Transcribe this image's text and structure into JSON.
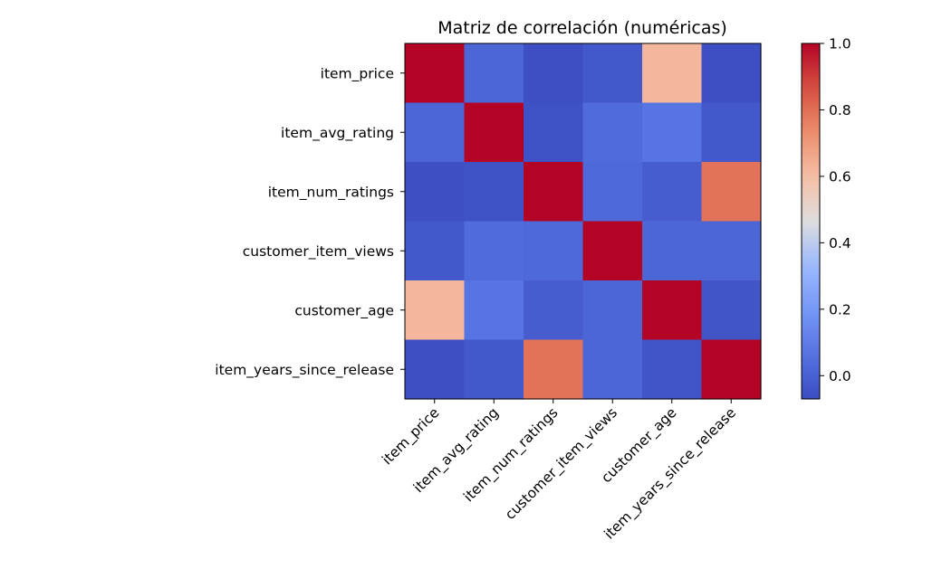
{
  "chart_data": {
    "type": "heatmap",
    "title": "Matriz de correlación (numéricas)",
    "rows": [
      "item_price",
      "item_avg_rating",
      "item_num_ratings",
      "customer_item_views",
      "customer_age",
      "item_years_since_release"
    ],
    "columns": [
      "item_price",
      "item_avg_rating",
      "item_num_ratings",
      "customer_item_views",
      "customer_age",
      "item_years_since_release"
    ],
    "values": [
      [
        1.0,
        0.02,
        -0.06,
        -0.03,
        0.62,
        -0.06
      ],
      [
        0.02,
        1.0,
        -0.05,
        0.04,
        0.07,
        -0.03
      ],
      [
        -0.06,
        -0.05,
        1.0,
        0.03,
        -0.01,
        0.79
      ],
      [
        -0.03,
        0.04,
        0.03,
        1.0,
        0.02,
        0.02
      ],
      [
        0.62,
        0.07,
        -0.01,
        0.02,
        1.0,
        -0.04
      ],
      [
        -0.06,
        -0.03,
        0.79,
        0.02,
        -0.04,
        1.0
      ]
    ],
    "colormap": "coolwarm",
    "vmin": -0.07,
    "vmax": 1.0,
    "colorbar_ticks": [
      0.0,
      0.2,
      0.4,
      0.6,
      0.8,
      1.0
    ],
    "colorbar_tick_labels": [
      "0.0",
      "0.2",
      "0.4",
      "0.6",
      "0.8",
      "1.0"
    ]
  }
}
